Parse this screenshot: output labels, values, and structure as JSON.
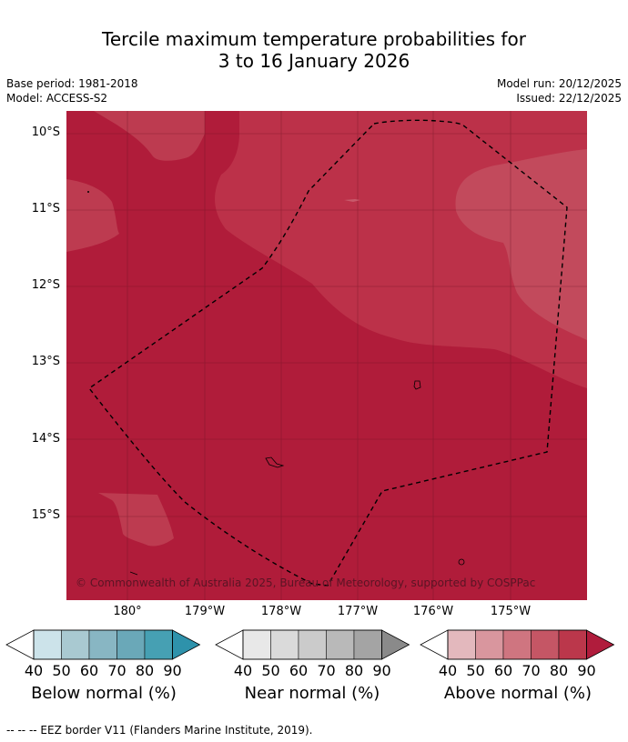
{
  "title_line1": "Tercile maximum temperature probabilities for",
  "title_line2": "3 to 16 January 2026",
  "base_period": "Base period: 1981-2018",
  "model": "Model: ACCESS-S2",
  "model_run": "Model run: 20/12/2025",
  "issued": "Issued: 22/12/2025",
  "lat_labels": [
    "10°S",
    "11°S",
    "12°S",
    "13°S",
    "14°S",
    "15°S"
  ],
  "lon_labels": [
    "180°",
    "179°W",
    "178°W",
    "177°W",
    "176°W",
    "175°W"
  ],
  "copyright": "© Commonwealth of Australia 2025, Bureau of Meteorology, supported by COSPPac",
  "colorbars": [
    {
      "label": "Below normal (%)",
      "ticks": [
        "40",
        "50",
        "60",
        "70",
        "80",
        "90"
      ],
      "colors": [
        "#cce3ea",
        "#a9c9d1",
        "#88b6c3",
        "#6aa8b8",
        "#46a0b3",
        "#2e92ab"
      ]
    },
    {
      "label": "Near normal (%)",
      "ticks": [
        "40",
        "50",
        "60",
        "70",
        "80",
        "90"
      ],
      "colors": [
        "#e8e8e8",
        "#dadada",
        "#cbcbcb",
        "#b9b9b9",
        "#a4a4a4",
        "#8a8a8a"
      ]
    },
    {
      "label": "Above normal (%)",
      "ticks": [
        "40",
        "50",
        "60",
        "70",
        "80",
        "90"
      ],
      "colors": [
        "#e3b8bd",
        "#d9969e",
        "#cf7580",
        "#c55665",
        "#bb374b",
        "#b01c3c"
      ]
    }
  ],
  "footer": "--  --  -- EEZ border V11 (Flanders Marine Institute, 2019)."
}
